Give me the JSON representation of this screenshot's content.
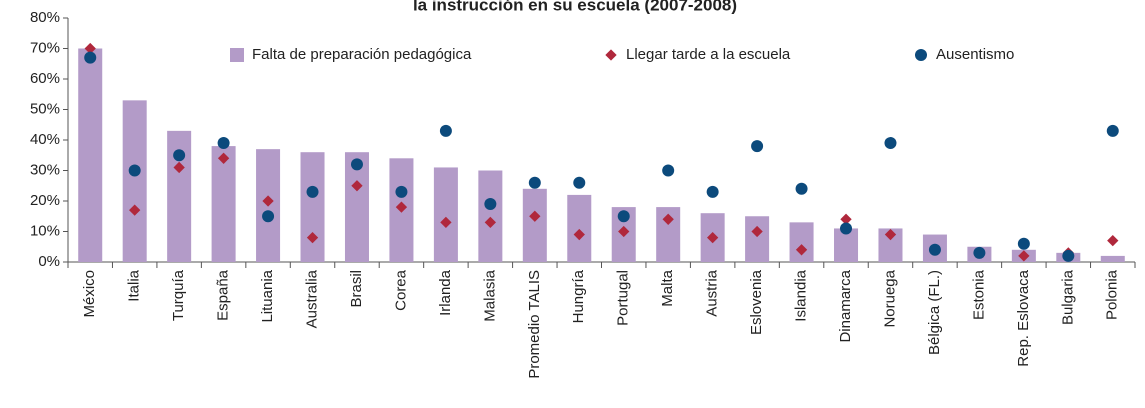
{
  "chart_data": {
    "type": "bar",
    "title": "la instrucción en su escuela (2007-2008)",
    "categories": [
      "México",
      "Italia",
      "Turquía",
      "España",
      "Lituania",
      "Australia",
      "Brasil",
      "Corea",
      "Irlanda",
      "Malasia",
      "Promedio TALIS",
      "Hungría",
      "Portugal",
      "Malta",
      "Austria",
      "Eslovenia",
      "Islandia",
      "Dinamarca",
      "Noruega",
      "Bélgica (FL.)",
      "Estonia",
      "Rep. Eslovaca",
      "Bulgaria",
      "Polonia"
    ],
    "series": [
      {
        "name": "Falta de preparación pedagógica",
        "type": "bar",
        "color": "#b39bc8",
        "values": [
          70,
          53,
          43,
          38,
          37,
          36,
          36,
          34,
          31,
          30,
          24,
          22,
          18,
          18,
          16,
          15,
          13,
          11,
          11,
          9,
          5,
          4,
          3,
          2
        ]
      },
      {
        "name": "Llegar tarde a la escuela",
        "type": "diamond",
        "color": "#b0283c",
        "values": [
          70,
          17,
          31,
          34,
          20,
          8,
          25,
          18,
          13,
          13,
          15,
          9,
          10,
          14,
          8,
          10,
          4,
          14,
          9,
          4,
          3,
          2,
          3,
          7
        ]
      },
      {
        "name": "Ausentismo",
        "type": "dot",
        "color": "#0c4a7c",
        "values": [
          67,
          30,
          35,
          39,
          15,
          23,
          32,
          23,
          43,
          19,
          26,
          26,
          15,
          30,
          23,
          38,
          24,
          11,
          39,
          4,
          3,
          6,
          2,
          43
        ]
      }
    ],
    "ylim": [
      0,
      80
    ],
    "yticks": [
      {
        "value": 0,
        "label": "0%"
      },
      {
        "value": 10,
        "label": "10%"
      },
      {
        "value": 20,
        "label": "20%"
      },
      {
        "value": 30,
        "label": "30%"
      },
      {
        "value": 40,
        "label": "40%"
      },
      {
        "value": 50,
        "label": "50%"
      },
      {
        "value": 60,
        "label": "60%"
      },
      {
        "value": 70,
        "label": "70%"
      },
      {
        "value": 80,
        "label": "80%"
      }
    ],
    "legend": "top"
  }
}
